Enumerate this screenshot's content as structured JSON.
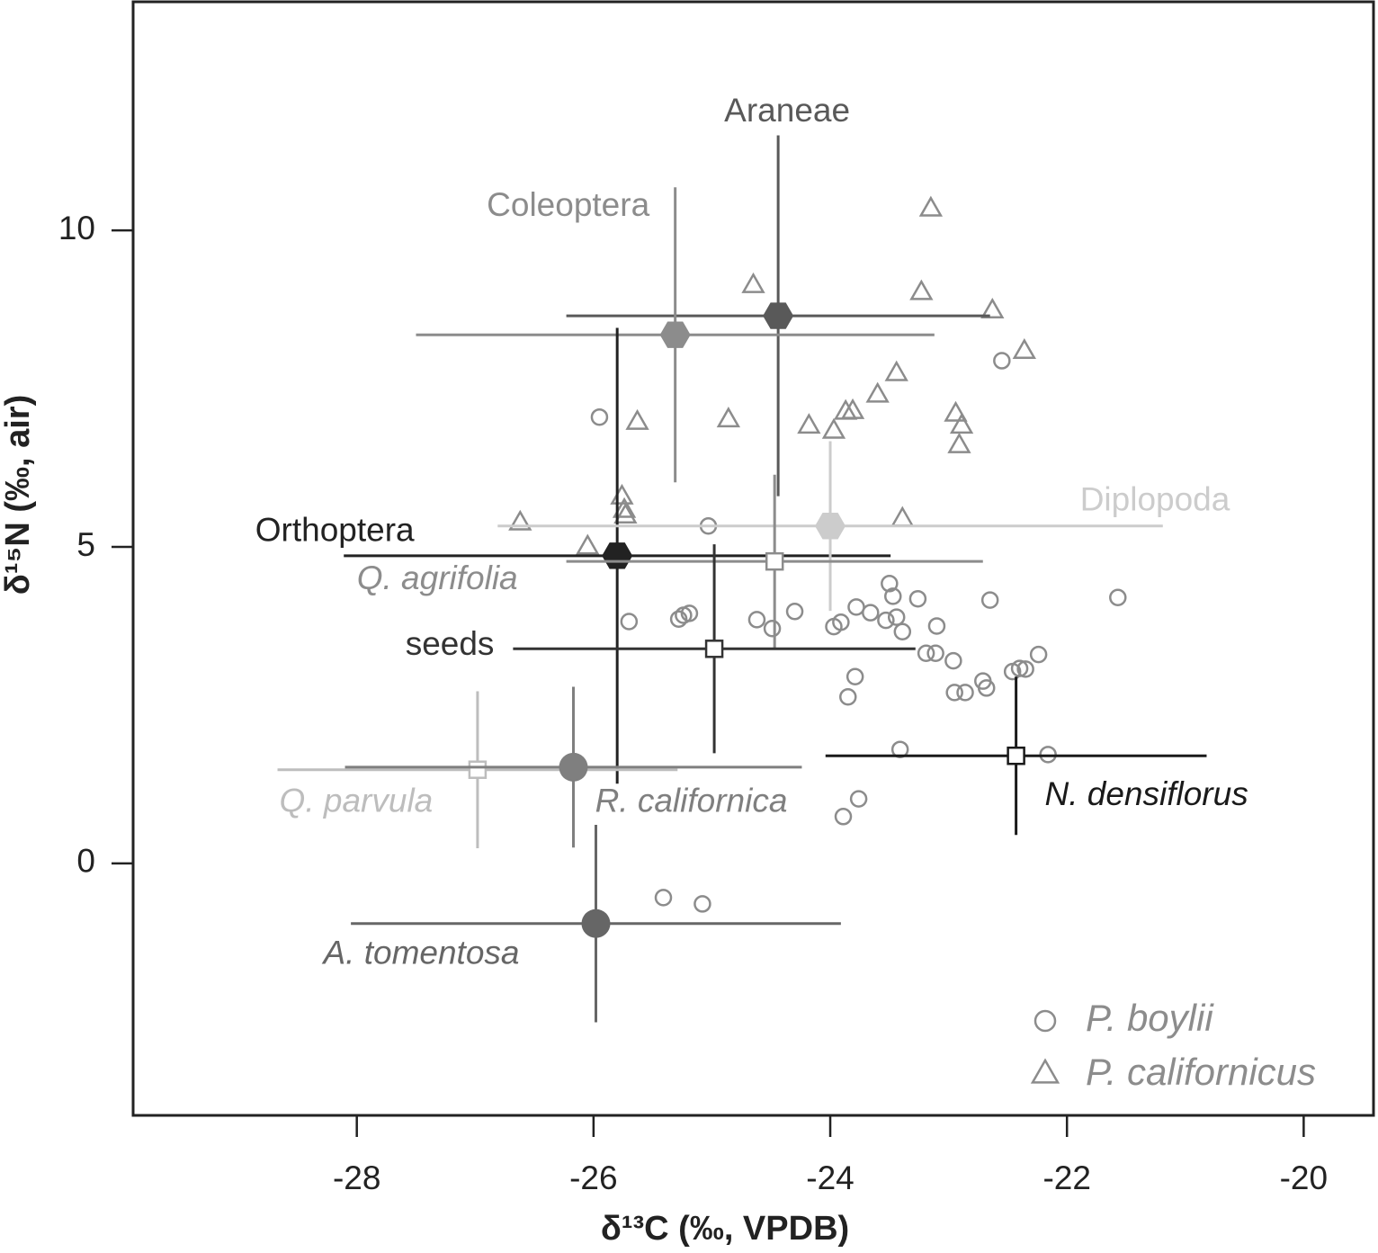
{
  "chart_data": {
    "type": "scatter",
    "xlabel": "δ¹³C (‰, VPDB)",
    "ylabel": "δ¹⁵N (‰, air)",
    "xlim": [
      -29.89,
      -19.41
    ],
    "ylim": [
      -3.98,
      13.61
    ],
    "xticks": [
      -28,
      -26,
      -24,
      -22,
      -20
    ],
    "yticks": [
      0,
      5,
      10
    ],
    "legend": "lower right",
    "series": [
      {
        "name": "P. boylii",
        "marker": "circle",
        "color": "#8c8c8c",
        "x": [
          -25.95,
          -22.55,
          -25.03,
          -25.7,
          -25.28,
          -25.24,
          -25.19,
          -24.62,
          -24.49,
          -24.3,
          -23.97,
          -23.91,
          -23.78,
          -23.66,
          -23.53,
          -23.44,
          -23.5,
          -23.47,
          -23.39,
          -23.26,
          -23.1,
          -23.19,
          -23.11,
          -22.96,
          -22.65,
          -21.57,
          -22.24,
          -22.46,
          -22.4,
          -22.35,
          -23.79,
          -23.85,
          -22.95,
          -22.86,
          -22.71,
          -22.68,
          -23.41,
          -22.16,
          -23.76,
          -23.89,
          -25.41,
          -25.08
        ],
        "y": [
          7.05,
          7.94,
          5.33,
          3.82,
          3.86,
          3.92,
          3.95,
          3.85,
          3.71,
          3.98,
          3.74,
          3.81,
          4.05,
          3.96,
          3.84,
          3.89,
          4.42,
          4.22,
          3.66,
          4.18,
          3.75,
          3.32,
          3.32,
          3.2,
          4.16,
          4.2,
          3.3,
          3.03,
          3.08,
          3.07,
          2.95,
          2.63,
          2.7,
          2.7,
          2.88,
          2.77,
          1.8,
          1.72,
          1.02,
          0.74,
          -0.54,
          -0.64
        ]
      },
      {
        "name": "P. californicus",
        "marker": "triangle",
        "color": "#8c8c8c",
        "x": [
          -23.15,
          -24.65,
          -23.23,
          -22.63,
          -22.36,
          -23.44,
          -23.6,
          -23.87,
          -23.81,
          -24.86,
          -25.63,
          -24.18,
          -23.97,
          -22.94,
          -22.89,
          -22.91,
          -25.76,
          -25.73,
          -25.74,
          -26.62,
          -26.05,
          -23.39
        ],
        "y": [
          10.33,
          9.12,
          9.01,
          8.72,
          8.08,
          7.73,
          7.39,
          7.12,
          7.13,
          7.0,
          6.96,
          6.9,
          6.82,
          7.09,
          6.9,
          6.59,
          5.78,
          5.48,
          5.57,
          5.37,
          4.99,
          5.43
        ]
      }
    ],
    "groups": [
      {
        "name": "Araneae",
        "marker": "hexagon",
        "color": "#595959",
        "italic": false,
        "x": -24.44,
        "y": 8.65,
        "xerr": 1.79,
        "yerr": 2.85
      },
      {
        "name": "Coleoptera",
        "marker": "hexagon",
        "color": "#8c8c8c",
        "italic": false,
        "x": -25.31,
        "y": 8.35,
        "xerr": 2.19,
        "yerr": 2.33
      },
      {
        "name": "Orthoptera",
        "marker": "hexagon",
        "color": "#222222",
        "italic": false,
        "x": -25.8,
        "y": 4.86,
        "xerr": 2.31,
        "yerr": 3.6
      },
      {
        "name": "Diplopoda",
        "marker": "hexagon",
        "color": "#cccccc",
        "italic": false,
        "x": -24.0,
        "y": 5.33,
        "xerr": 2.81,
        "yerr": 1.34
      },
      {
        "name": "Q. agrifolia",
        "marker": "square",
        "color": "#8c8c8c",
        "italic": true,
        "x": -24.47,
        "y": 4.77,
        "xerr": 1.76,
        "yerr": 1.37
      },
      {
        "name": "seeds",
        "marker": "square",
        "color": "#333333",
        "italic": false,
        "x": -24.98,
        "y": 3.39,
        "xerr": 1.7,
        "yerr": 1.65
      },
      {
        "name": "N. densiflorus",
        "marker": "square",
        "color": "#1a1a1a",
        "italic": true,
        "x": -22.43,
        "y": 1.7,
        "xerr": 1.61,
        "yerr": 1.25
      },
      {
        "name": "Q. parvula",
        "marker": "square",
        "color": "#bdbdbd",
        "italic": true,
        "x": -26.98,
        "y": 1.48,
        "xerr": 1.69,
        "yerr": 1.24
      },
      {
        "name": "R. californica",
        "marker": "circle",
        "color": "#7f7f7f",
        "italic": true,
        "x": -26.17,
        "y": 1.52,
        "xerr": 1.93,
        "yerr": 1.27
      },
      {
        "name": "A. tomentosa",
        "marker": "circle",
        "color": "#666666",
        "italic": true,
        "x": -25.98,
        "y": -0.95,
        "xerr": 2.07,
        "yerr": 1.56
      }
    ]
  }
}
